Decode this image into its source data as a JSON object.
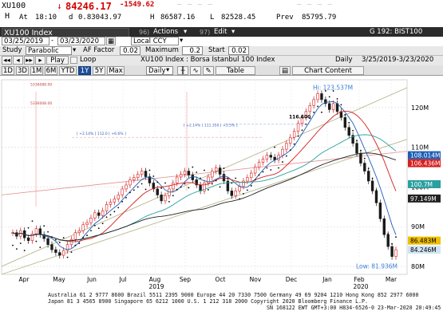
{
  "quote": {
    "ticker": "XU100",
    "last": "84246.17",
    "change": "-1549.62",
    "hi_marker": "H",
    "at_label": "At",
    "time": "18:10",
    "d_label": "d",
    "d_value": "0.83043.97",
    "h_label": "H",
    "h_value": "86587.16",
    "l_label": "L",
    "l_value": "82528.45",
    "prev_label": "Prev",
    "prev_value": "85795.79",
    "arrow": "↓",
    "dashes": "— — — —"
  },
  "toolbar": {
    "index_name": "XU100 Index",
    "actions_label": "Actions",
    "actions_num": "96)",
    "edit_label": "Edit",
    "edit_num": "97)",
    "g_label": "G 192: BIST100",
    "date_from": "03/25/2019",
    "date_to": "03/23/2020",
    "currency": "Local CCY",
    "study_label": "Study",
    "study_value": "Parabolic",
    "af_label": "AF Factor",
    "af_value": "0.02",
    "max_label": "Maximum",
    "max_value": "0.2",
    "start_label": "Start",
    "start_value": "0.02",
    "play_label": "Play",
    "loop_label": "Loop",
    "chart_title": "XU100 Index : Borsa Istanbul 100 Index",
    "freq": "Daily",
    "range_text": "3/25/2019-3/23/2020",
    "periods": [
      "1D",
      "3D",
      "1M",
      "6M",
      "YTD",
      "1Y",
      "5Y",
      "Max"
    ],
    "selected_period": "1Y",
    "daily_select": "Daily",
    "table_label": "Table",
    "chart_content_label": "Chart Content"
  },
  "chart_data": {
    "type": "candlestick",
    "x_months": [
      "Apr",
      "May",
      "Jun",
      "Jul",
      "Aug",
      "Sep",
      "Oct",
      "Nov",
      "Dec",
      "Jan",
      "Feb",
      "Mar"
    ],
    "x_years": [
      "2019",
      "2020"
    ],
    "y_ticks": [
      "120M",
      "110M",
      "100M",
      "90M",
      "80M"
    ],
    "ylim": [
      78,
      127
    ],
    "hi_label": "Hi: 123.537M",
    "low_label": "Low: 81.936M",
    "mid_label": "116.600",
    "price_tags": [
      {
        "value": "108.014M",
        "color": "#1e5fb4",
        "y": 108.0
      },
      {
        "value": "106.436M",
        "color": "#d62020",
        "y": 106.4
      },
      {
        "value": "100.7M",
        "color": "#2aa0a0",
        "y": 100.7
      },
      {
        "value": "97.149M",
        "color": "#222222",
        "y": 97.1
      },
      {
        "value": "86.483M",
        "color": "#f0c000",
        "y": 86.5
      },
      {
        "value": "84.246M",
        "color": "#d0e4f4",
        "y": 84.2
      }
    ],
    "close_series": [
      88.5,
      87.6,
      89.0,
      87.2,
      86.5,
      88.2,
      89.5,
      88.0,
      87.0,
      85.5,
      84.2,
      83.5,
      82.8,
      84.0,
      85.5,
      86.8,
      88.5,
      89.0,
      90.5,
      91.0,
      92.2,
      93.5,
      92.8,
      94.0,
      95.6,
      96.2,
      97.0,
      98.0,
      99.5,
      100.5,
      101.8,
      102.4,
      103.2,
      104.0,
      102.6,
      101.0,
      99.5,
      98.0,
      96.5,
      97.8,
      99.5,
      101.0,
      102.5,
      103.2,
      104.0,
      103.0,
      101.8,
      100.5,
      99.0,
      101.0,
      102.5,
      104.0,
      104.8,
      103.2,
      101.5,
      99.0,
      97.8,
      99.0,
      100.2,
      101.5,
      102.4,
      103.5,
      105.0,
      106.2,
      107.0,
      108.0,
      107.5,
      106.8,
      108.0,
      109.5,
      111.0,
      112.5,
      114.0,
      116.0,
      117.5,
      119.0,
      120.5,
      122.0,
      123.5,
      122.0,
      121.0,
      119.5,
      121.0,
      119.0,
      117.5,
      115.0,
      113.0,
      111.0,
      108.5,
      106.0,
      104.0,
      101.5,
      99.0,
      96.0,
      92.0,
      88.0,
      85.0,
      82.5,
      84.2
    ],
    "annotation_lines": [
      {
        "text": "5336088.00"
      },
      {
        "text": "5336008.00"
      },
      {
        "text": "[ +2.14% ] 111.350 [ +5.5% ]"
      },
      {
        "text": "[ +2.14% ] 112.0 [ +6.6% ]"
      }
    ]
  },
  "footer": {
    "line1": "Australia 61 2 9777 8600 Brazil 5511 2395 9000 Europe 44 20 7330 7500 Germany 49 69 9204 1210 Hong Kong 852 2977 6000",
    "line2": "Japan 81 3 4565 8900      Singapore 65 6212 1000      U.S. 1 212 318 2000      Copyright 2020 Bloomberg Finance L.P.",
    "line3": "SN 168122 EWT  GMT+3:00 H834-6526-0 23-Mar-2020 20:49:45"
  },
  "colors": {
    "up": "#d62020",
    "down": "#1a1a1a",
    "sar": "#000000",
    "trend": "#b8b890"
  }
}
